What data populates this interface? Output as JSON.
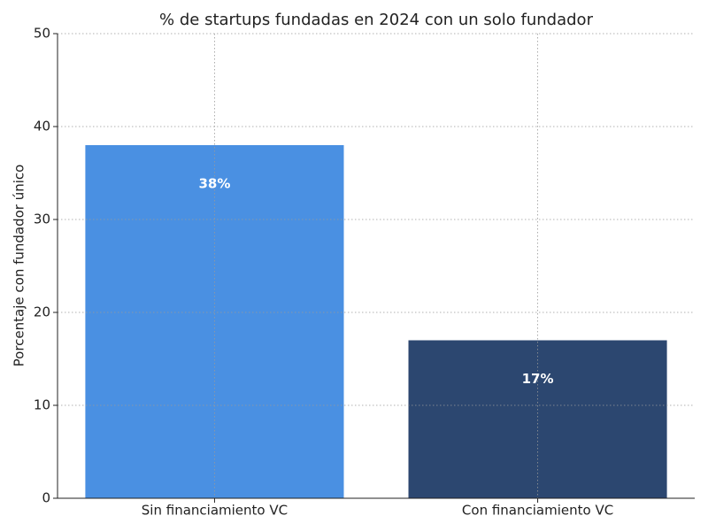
{
  "chart_data": {
    "type": "bar",
    "title": "% de startups fundadas en 2024 con un solo fundador",
    "y_label": "Porcentaje con fundador único",
    "categories": [
      "Sin financiamiento VC",
      "Con financiamiento VC"
    ],
    "values": [
      38,
      17
    ],
    "value_labels": [
      "38%",
      "17%"
    ],
    "colors": [
      "#4a90e2",
      "#2c4770"
    ],
    "ylim": [
      0,
      50
    ],
    "yticks": [
      0,
      10,
      20,
      30,
      40,
      50
    ],
    "grid": true
  }
}
